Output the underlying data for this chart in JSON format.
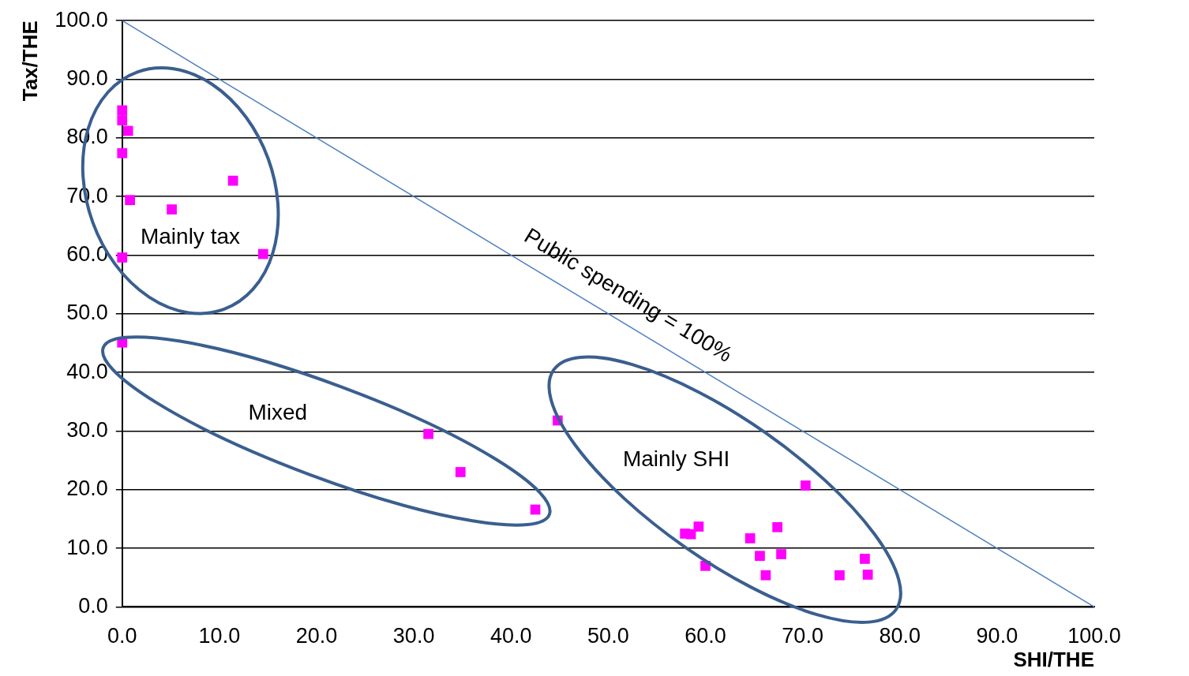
{
  "chart_data": {
    "type": "scatter",
    "xlabel": "SHI/THE",
    "ylabel": "Tax/THE",
    "xlim": [
      0,
      100
    ],
    "ylim": [
      0,
      100
    ],
    "xticks": [
      {
        "value": 0,
        "label": "0.0"
      },
      {
        "value": 10,
        "label": "10.0"
      },
      {
        "value": 20,
        "label": "20.0"
      },
      {
        "value": 30,
        "label": "30.0"
      },
      {
        "value": 40,
        "label": "40.0"
      },
      {
        "value": 50,
        "label": "50.0"
      },
      {
        "value": 60,
        "label": "60.0"
      },
      {
        "value": 70,
        "label": "70.0"
      },
      {
        "value": 80,
        "label": "80.0"
      },
      {
        "value": 90,
        "label": "90.0"
      },
      {
        "value": 100,
        "label": "100.0"
      }
    ],
    "yticks": [
      {
        "value": 0,
        "label": "0.0"
      },
      {
        "value": 10,
        "label": "10.0"
      },
      {
        "value": 20,
        "label": "20.0"
      },
      {
        "value": 30,
        "label": "30.0"
      },
      {
        "value": 40,
        "label": "40.0"
      },
      {
        "value": 50,
        "label": "50.0"
      },
      {
        "value": 60,
        "label": "60.0"
      },
      {
        "value": 70,
        "label": "70.0"
      },
      {
        "value": 80,
        "label": "80.0"
      },
      {
        "value": 90,
        "label": "90.0"
      },
      {
        "value": 100,
        "label": "100.0"
      }
    ],
    "grid": "y",
    "legend": false,
    "marker": "square",
    "series": [
      {
        "color": "#ff00ff",
        "x": [
          0,
          0,
          0.6,
          0,
          0.8,
          5.1,
          11.4,
          0,
          14.5,
          0,
          31.5,
          34.8,
          42.5,
          44.8,
          57.9,
          58.5,
          59.3,
          60.0,
          64.6,
          65.6,
          66.2,
          67.4,
          67.8,
          70.3,
          73.8,
          76.4,
          76.7
        ],
        "values": [
          84.7,
          83,
          81.2,
          77.4,
          69.4,
          67.8,
          72.7,
          59.6,
          60.2,
          45.1,
          29.5,
          23.0,
          16.6,
          31.8,
          12.5,
          12.4,
          13.7,
          7.0,
          11.7,
          8.7,
          5.4,
          13.6,
          9.0,
          20.7,
          5.4,
          8.2,
          5.5
        ]
      },
      {
        "type": "line",
        "color": "#4f81bd",
        "marker": "none",
        "x": [
          0,
          100
        ],
        "values": [
          100,
          0
        ]
      }
    ],
    "annotations": [
      "Public spending = 100%",
      "Mainly tax",
      "Mixed",
      "Mainly SHI"
    ]
  }
}
